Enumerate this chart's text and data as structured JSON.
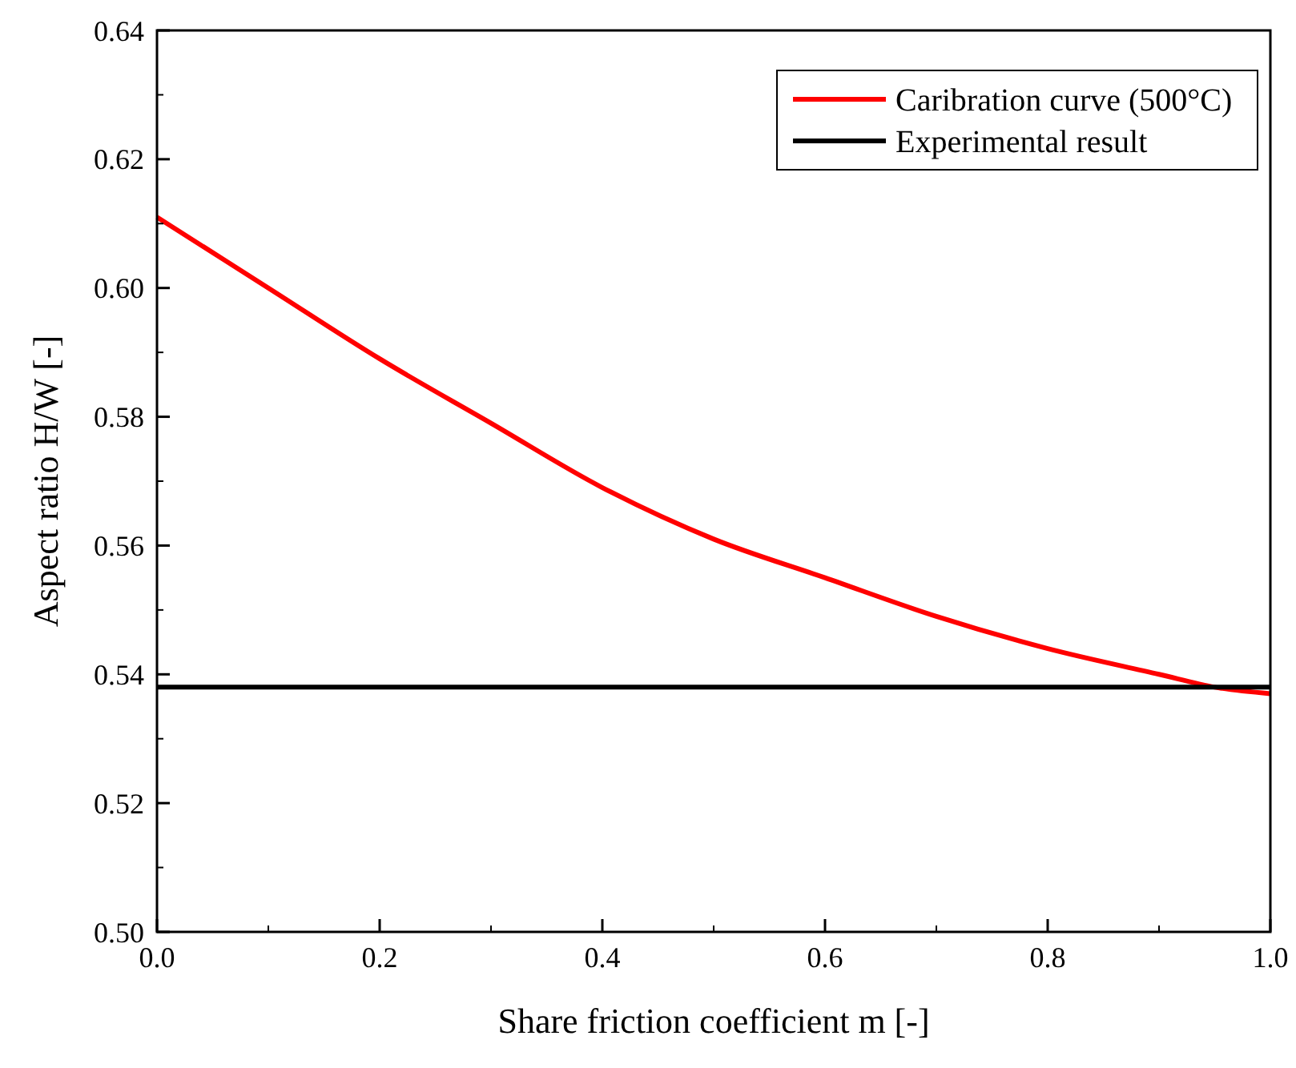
{
  "chart_data": {
    "type": "line",
    "xlabel": "Share friction coefficient m [-]",
    "ylabel": "Aspect ratio H/W [-]",
    "xlim": [
      0,
      1
    ],
    "xticks": [
      {
        "value": 0,
        "label": "0.0"
      },
      0.2,
      0.4,
      0.6,
      0.8,
      {
        "value": 1,
        "label": "1.0"
      }
    ],
    "ylim": [
      0.5,
      0.64
    ],
    "yticks": [
      {
        "value": 0.5,
        "label": "0.50"
      },
      0.52,
      0.54,
      0.56,
      0.58,
      {
        "value": 0.6,
        "label": "0.60"
      },
      0.62,
      0.64
    ],
    "legend": "top right",
    "grid": false,
    "line_style": "solid",
    "marker": "none",
    "series": [
      {
        "name": "Caribration curve (500°C)",
        "color": "#ff0000",
        "x": [
          0,
          0.1,
          0.2,
          0.3,
          0.4,
          0.5,
          0.6,
          0.7,
          0.8,
          0.9,
          0.95,
          1
        ],
        "values": [
          0.611,
          0.6,
          0.589,
          0.579,
          0.569,
          0.561,
          0.555,
          0.549,
          0.544,
          0.54,
          0.538,
          0.537
        ]
      },
      {
        "name": "Experimental result",
        "color": "#000000",
        "x": [
          0,
          1
        ],
        "values": [
          0.538,
          0.538
        ]
      }
    ]
  }
}
